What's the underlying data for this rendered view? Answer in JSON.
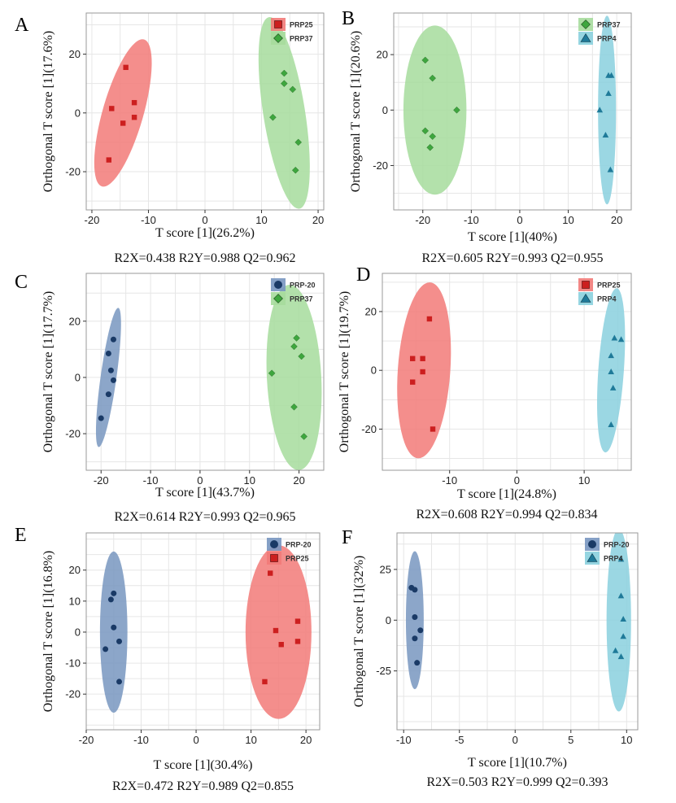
{
  "colors": {
    "PRP25": "#cc1f1f",
    "PRP25_ellipse": "#f27a78",
    "PRP37": "#3ea63e",
    "PRP37_ellipse": "#a6dc9c",
    "PRP4": "#1f7a99",
    "PRP4_ellipse": "#8ad0de",
    "PRP-20": "#1a3a66",
    "PRP-20_ellipse": "#7896c0",
    "grid": "#e6e6e6",
    "frame": "#9a9a9a"
  },
  "chart_data": [
    {
      "panel": "A",
      "type": "scatter",
      "xlabel": "T score [1](26.2%)",
      "ylabel": "Orthogonal T score [1](17.6%)",
      "stats": "R2X=0.438    R2Y=0.988    Q2=0.962",
      "xlim": [
        -21,
        21
      ],
      "ylim": [
        -33,
        34
      ],
      "xticks": [
        -20,
        -10,
        0,
        10,
        20
      ],
      "yticks": [
        -20,
        0,
        20
      ],
      "legend": "top-right",
      "series": [
        {
          "name": "PRP25",
          "marker": "square",
          "points": [
            [
              -14,
              15.5
            ],
            [
              -16.5,
              1.5
            ],
            [
              -12.5,
              3.5
            ],
            [
              -12.5,
              -1.5
            ],
            [
              -14.5,
              -3.5
            ],
            [
              -17,
              -16
            ]
          ],
          "ellipse": {
            "cx": -14.5,
            "cy": 0,
            "rx": 3.6,
            "ry": 26,
            "angle": 16
          }
        },
        {
          "name": "PRP37",
          "marker": "diamond",
          "points": [
            [
              14,
              13.5
            ],
            [
              14,
              10
            ],
            [
              15.5,
              8
            ],
            [
              12,
              -1.5
            ],
            [
              16.5,
              -10
            ],
            [
              16,
              -19.5
            ]
          ],
          "ellipse": {
            "cx": 14,
            "cy": 0,
            "rx": 3.7,
            "ry": 33,
            "angle": -9
          }
        }
      ]
    },
    {
      "panel": "B",
      "type": "scatter",
      "xlabel": "T score [1](40%)",
      "ylabel": "Orthogonal T score [1](20.6%)",
      "stats": "R2X=0.605    R2Y=0.993    Q2=0.955",
      "xlim": [
        -26,
        23
      ],
      "ylim": [
        -36,
        35
      ],
      "xticks": [
        -20,
        -10,
        0,
        10,
        20
      ],
      "yticks": [
        -20,
        0,
        20
      ],
      "legend": "top-right",
      "series": [
        {
          "name": "PRP37",
          "marker": "diamond",
          "points": [
            [
              -19.5,
              18
            ],
            [
              -18,
              11.5
            ],
            [
              -13,
              0
            ],
            [
              -19.5,
              -7.5
            ],
            [
              -18,
              -9.5
            ],
            [
              -18.5,
              -13.5
            ]
          ],
          "ellipse": {
            "cx": -17.5,
            "cy": 0,
            "rx": 6.5,
            "ry": 30.5,
            "angle": 0
          }
        },
        {
          "name": "PRP4",
          "marker": "triangle",
          "points": [
            [
              18.3,
              12.5
            ],
            [
              18.9,
              12.5
            ],
            [
              18.3,
              6
            ],
            [
              16.5,
              0
            ],
            [
              17.7,
              -9
            ],
            [
              18.7,
              -21.5
            ]
          ],
          "ellipse": {
            "cx": 18,
            "cy": 0,
            "rx": 1.85,
            "ry": 34,
            "angle": 0
          }
        }
      ]
    },
    {
      "panel": "C",
      "type": "scatter",
      "xlabel": "T score [1](43.7%)",
      "ylabel": "Orthogonal T score [1](17.7%)",
      "stats": "R2X=0.614    R2Y=0.993    Q2=0.965",
      "xlim": [
        -23,
        25
      ],
      "ylim": [
        -33,
        37
      ],
      "xticks": [
        -20,
        -10,
        0,
        10,
        20
      ],
      "yticks": [
        -20,
        0,
        20
      ],
      "legend": "top-right",
      "series": [
        {
          "name": "PRP-20",
          "marker": "circle",
          "points": [
            [
              -17.5,
              13.5
            ],
            [
              -18.5,
              8.5
            ],
            [
              -18,
              2.5
            ],
            [
              -17.5,
              -1
            ],
            [
              -18.5,
              -6
            ],
            [
              -20,
              -14.5
            ]
          ],
          "ellipse": {
            "cx": -18.5,
            "cy": 0,
            "rx": 1.6,
            "ry": 25,
            "angle": 8
          }
        },
        {
          "name": "PRP37",
          "marker": "diamond",
          "points": [
            [
              19.5,
              14
            ],
            [
              19,
              11
            ],
            [
              20.5,
              7.5
            ],
            [
              14.5,
              1.5
            ],
            [
              19,
              -10.5
            ],
            [
              21,
              -21
            ]
          ],
          "ellipse": {
            "cx": 19,
            "cy": 0,
            "rx": 5.5,
            "ry": 33,
            "angle": -3
          }
        }
      ]
    },
    {
      "panel": "D",
      "type": "scatter",
      "xlabel": "T score [1](24.8%)",
      "ylabel": "Orthogonal T score [1](19.7%)",
      "stats": "R2X=0.608    R2Y=0.994    Q2=0.834",
      "xlim": [
        -20,
        17
      ],
      "ylim": [
        -34,
        33
      ],
      "xticks": [
        -10,
        0,
        10
      ],
      "yticks": [
        -20,
        0,
        20
      ],
      "legend": "top-right",
      "series": [
        {
          "name": "PRP25",
          "marker": "square",
          "points": [
            [
              -13,
              17.5
            ],
            [
              -15.5,
              4
            ],
            [
              -14,
              4
            ],
            [
              -14,
              -0.5
            ],
            [
              -15.5,
              -4
            ],
            [
              -12.5,
              -20
            ]
          ],
          "ellipse": {
            "cx": -13.8,
            "cy": 0,
            "rx": 3.9,
            "ry": 30,
            "angle": 4
          }
        },
        {
          "name": "PRP4",
          "marker": "triangle",
          "points": [
            [
              14.5,
              11
            ],
            [
              15.5,
              10.5
            ],
            [
              14,
              5
            ],
            [
              14,
              -0.5
            ],
            [
              14.3,
              -6
            ],
            [
              14,
              -18.5
            ]
          ],
          "ellipse": {
            "cx": 14,
            "cy": 0,
            "rx": 1.9,
            "ry": 28,
            "angle": 4
          }
        }
      ]
    },
    {
      "panel": "E",
      "type": "scatter",
      "xlabel": "T score [1](30.4%)",
      "ylabel": "Orthogonal T score [1](16.8%)",
      "stats": "R2X=0.472    R2Y=0.989    Q2=0.855",
      "xlim": [
        -20,
        22.5
      ],
      "ylim": [
        -31.5,
        32
      ],
      "xticks": [
        -20,
        -10,
        0,
        10,
        20
      ],
      "yticks": [
        -20,
        -10,
        0,
        10,
        20
      ],
      "legend": "top-right",
      "series": [
        {
          "name": "PRP-20",
          "marker": "circle",
          "points": [
            [
              -15,
              12.5
            ],
            [
              -15.5,
              10.5
            ],
            [
              -15,
              1.5
            ],
            [
              -14,
              -3
            ],
            [
              -16.5,
              -5.5
            ],
            [
              -14,
              -16
            ]
          ],
          "ellipse": {
            "cx": -15,
            "cy": 0,
            "rx": 2.5,
            "ry": 26,
            "angle": 0
          }
        },
        {
          "name": "PRP25",
          "marker": "square",
          "points": [
            [
              13.5,
              19
            ],
            [
              14.5,
              0.5
            ],
            [
              18.5,
              3.5
            ],
            [
              18.5,
              -3
            ],
            [
              15.5,
              -4
            ],
            [
              12.5,
              -16
            ]
          ],
          "ellipse": {
            "cx": 15,
            "cy": 0,
            "rx": 6,
            "ry": 28,
            "angle": 0
          }
        }
      ]
    },
    {
      "panel": "F",
      "type": "scatter",
      "xlabel": "T score [1](10.7%)",
      "ylabel": "Orthogonal T score [1](32%)",
      "stats": "R2X=0.503    R2Y=0.999    Q2=0.393",
      "xlim": [
        -10.6,
        11
      ],
      "ylim": [
        -54,
        43
      ],
      "xticks": [
        -10,
        -5,
        0,
        5,
        10
      ],
      "yticks": [
        -25,
        0,
        25
      ],
      "legend": "top-right",
      "series": [
        {
          "name": "PRP-20",
          "marker": "circle",
          "points": [
            [
              -9.3,
              16
            ],
            [
              -9,
              15
            ],
            [
              -9,
              1.5
            ],
            [
              -8.5,
              -5
            ],
            [
              -9,
              -9
            ],
            [
              -8.8,
              -21
            ]
          ],
          "ellipse": {
            "cx": -9,
            "cy": 0,
            "rx": 0.8,
            "ry": 34,
            "angle": 0
          }
        },
        {
          "name": "PRP4",
          "marker": "triangle",
          "points": [
            [
              9.5,
              30
            ],
            [
              9.5,
              12
            ],
            [
              9.7,
              0.5
            ],
            [
              9.7,
              -8
            ],
            [
              9,
              -15
            ],
            [
              9.5,
              -18
            ]
          ],
          "ellipse": {
            "cx": 9.3,
            "cy": 0,
            "rx": 1.1,
            "ry": 45,
            "angle": 0
          }
        }
      ]
    }
  ]
}
